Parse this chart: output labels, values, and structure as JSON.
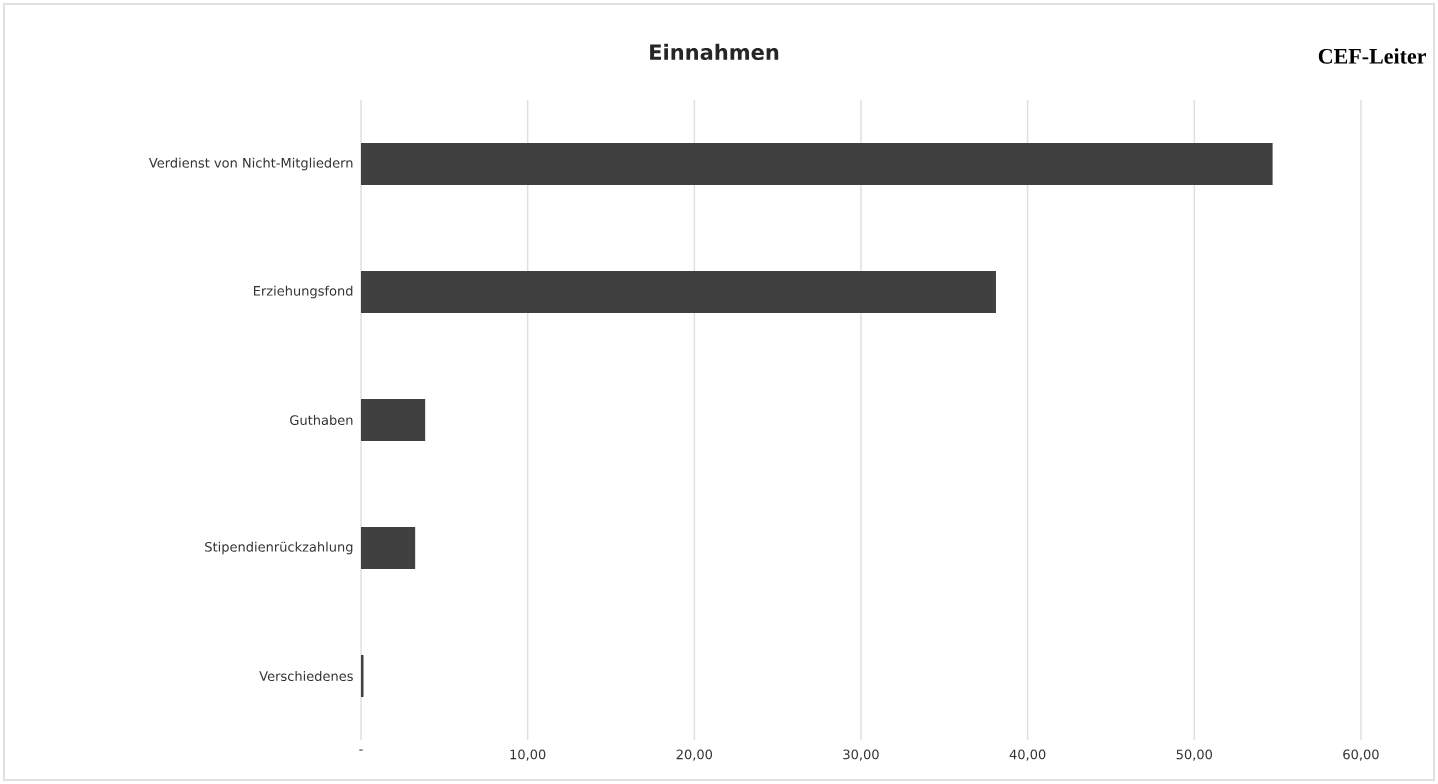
{
  "chart_data": {
    "type": "bar",
    "orientation": "horizontal",
    "title": "Einnahmen",
    "annotations": [
      "CEF-Leiter"
    ],
    "categories": [
      "Verdienst von Nicht-Mitgliedern",
      "Erziehungsfond",
      "Guthaben",
      "Stipendienrückzahlung",
      "Verschiedenes"
    ],
    "values": [
      54.7,
      38.1,
      3.85,
      3.25,
      0.15
    ],
    "color": "#404040",
    "xlim": [
      0,
      60
    ],
    "xticks": [
      {
        "value": 0,
        "label": "-"
      },
      {
        "value": 10,
        "label": "10,00"
      },
      {
        "value": 20,
        "label": "20,00"
      },
      {
        "value": 30,
        "label": "30,00"
      },
      {
        "value": 40,
        "label": "40,00"
      },
      {
        "value": 50,
        "label": "50,00"
      },
      {
        "value": 60,
        "label": "60,00"
      }
    ],
    "grid": "x"
  }
}
